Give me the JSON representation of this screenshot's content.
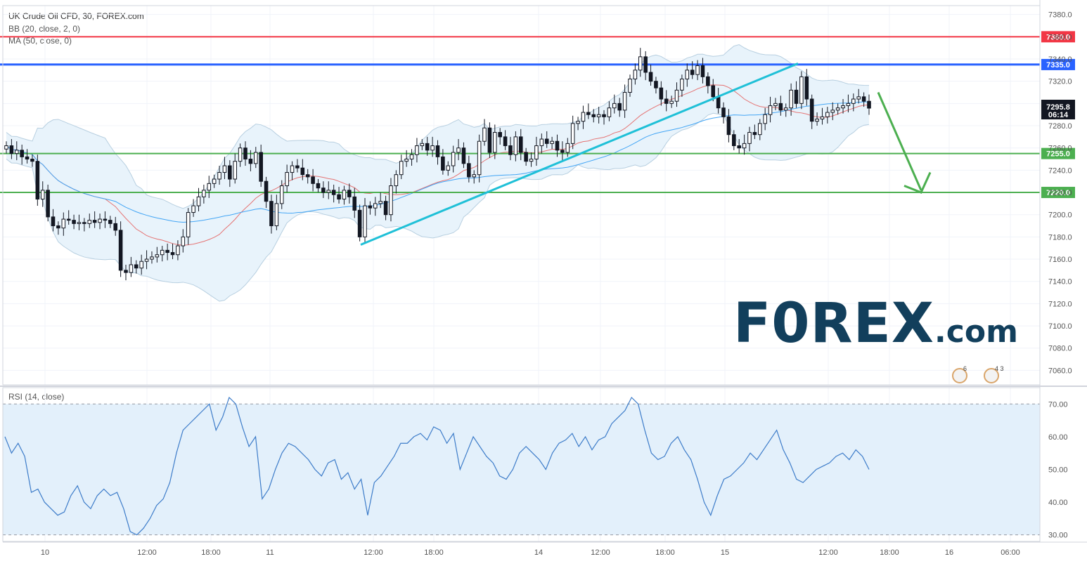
{
  "header": {
    "symbol_line": "UK Crude Oil CFD, 30, FOREX.com",
    "bb_line": "BB (20, close, 2, 0)",
    "ma_line": "MA (50, close, 0)",
    "rsi_line": "RSI (14, close)"
  },
  "watermark": {
    "text_main": "F0REX",
    "text_suffix": ".com"
  },
  "events": {
    "flag_a_count": "6",
    "flag_b_count": "4 3"
  },
  "colors": {
    "up_candle": "#ffffff",
    "down_candle": "#131722",
    "resistance_red": "#f23645",
    "resistance_blue": "#2962ff",
    "support_green": "#4caf50",
    "trendline": "#1fc0d7",
    "arrow": "#4caf50",
    "bb_band": "#e8f3fb",
    "ma_line": "#e57373",
    "bb_basis": "#42a5f5",
    "rsi_line": "#3d7cc9",
    "rsi_band": "#e3f0fb",
    "price_box": "#131722"
  },
  "chart_data": [
    {
      "type": "candlestick",
      "title": "UK Crude Oil CFD, 30, FOREX.com",
      "x_ticks": [
        "10",
        "12:00",
        "18:00",
        "11",
        "12:00",
        "18:00",
        "14",
        "12:00",
        "18:00",
        "15",
        "12:00",
        "18:00",
        "16",
        "06:00"
      ],
      "y_ticks": [
        7060,
        7080,
        7100,
        7120,
        7140,
        7160,
        7180,
        7200,
        7220,
        7240,
        7260,
        7280,
        7300,
        7320,
        7340,
        7360,
        7380
      ],
      "ylim": [
        7047,
        7388
      ],
      "horizontal_levels": [
        {
          "value": 7360.0,
          "label": "7360.0",
          "color": "red"
        },
        {
          "value": 7335.0,
          "label": "7335.0",
          "color": "blue"
        },
        {
          "value": 7255.0,
          "label": "7255.0",
          "color": "green"
        },
        {
          "value": 7220.0,
          "label": "7220.0",
          "color": "green"
        }
      ],
      "last_price": "7295.8",
      "countdown": "06:14",
      "close_series": [
        7262,
        7255,
        7258,
        7252,
        7250,
        7248,
        7214,
        7222,
        7198,
        7190,
        7188,
        7196,
        7195,
        7192,
        7193,
        7192,
        7195,
        7193,
        7196,
        7195,
        7192,
        7186,
        7150,
        7148,
        7155,
        7152,
        7158,
        7160,
        7162,
        7164,
        7168,
        7166,
        7164,
        7172,
        7180,
        7202,
        7208,
        7216,
        7222,
        7228,
        7232,
        7238,
        7244,
        7232,
        7248,
        7260,
        7250,
        7246,
        7256,
        7230,
        7212,
        7190,
        7210,
        7226,
        7238,
        7244,
        7242,
        7236,
        7234,
        7228,
        7224,
        7220,
        7222,
        7218,
        7214,
        7222,
        7216,
        7204,
        7180,
        7208,
        7206,
        7210,
        7212,
        7200,
        7226,
        7236,
        7248,
        7250,
        7254,
        7262,
        7264,
        7258,
        7262,
        7252,
        7240,
        7244,
        7256,
        7260,
        7246,
        7234,
        7236,
        7266,
        7278,
        7256,
        7274,
        7270,
        7262,
        7254,
        7270,
        7256,
        7248,
        7250,
        7262,
        7268,
        7264,
        7266,
        7258,
        7256,
        7264,
        7282,
        7284,
        7292,
        7290,
        7288,
        7290,
        7288,
        7296,
        7300,
        7294,
        7310,
        7322,
        7330,
        7342,
        7328,
        7320,
        7314,
        7304,
        7300,
        7302,
        7312,
        7322,
        7330,
        7326,
        7334,
        7324,
        7316,
        7306,
        7296,
        7288,
        7272,
        7262,
        7260,
        7264,
        7274,
        7272,
        7282,
        7290,
        7298,
        7300,
        7294,
        7296,
        7312,
        7300,
        7324,
        7304,
        7284,
        7286,
        7288,
        7292,
        7294,
        7296,
        7298,
        7300,
        7304,
        7306,
        7302,
        7295.8
      ],
      "series_notes": "close values above are estimated at ~3-bar intervals from the plotted candles; Bollinger Bands (20, 2) and MA (50) overlays are computed from them"
    },
    {
      "type": "line",
      "title": "RSI (14, close)",
      "y_ticks": [
        30.0,
        40.0,
        50.0,
        60.0,
        70.0
      ],
      "ylim": [
        28,
        75
      ],
      "bands": [
        30,
        70
      ],
      "values": [
        60,
        55,
        58,
        54,
        43,
        44,
        40,
        38,
        36,
        37,
        42,
        45,
        40,
        38,
        42,
        44,
        42,
        43,
        38,
        31,
        30,
        32,
        35,
        39,
        41,
        46,
        55,
        62,
        64,
        66,
        68,
        70,
        62,
        66,
        72,
        70,
        63,
        57,
        60,
        41,
        44,
        50,
        55,
        58,
        57,
        55,
        53,
        50,
        48,
        52,
        53,
        47,
        49,
        44,
        47,
        36,
        46,
        48,
        51,
        54,
        58,
        58,
        60,
        61,
        59,
        63,
        62,
        58,
        61,
        50,
        55,
        60,
        57,
        54,
        52,
        48,
        47,
        50,
        55,
        57,
        55,
        53,
        50,
        55,
        58,
        59,
        61,
        57,
        60,
        56,
        59,
        60,
        64,
        66,
        68,
        72,
        70,
        62,
        55,
        53,
        54,
        58,
        60,
        56,
        53,
        47,
        40,
        36,
        42,
        47,
        48,
        50,
        52,
        55,
        53,
        56,
        59,
        62,
        56,
        52,
        47,
        46,
        48,
        50,
        51,
        52,
        54,
        55,
        53,
        56,
        54,
        50
      ]
    }
  ]
}
